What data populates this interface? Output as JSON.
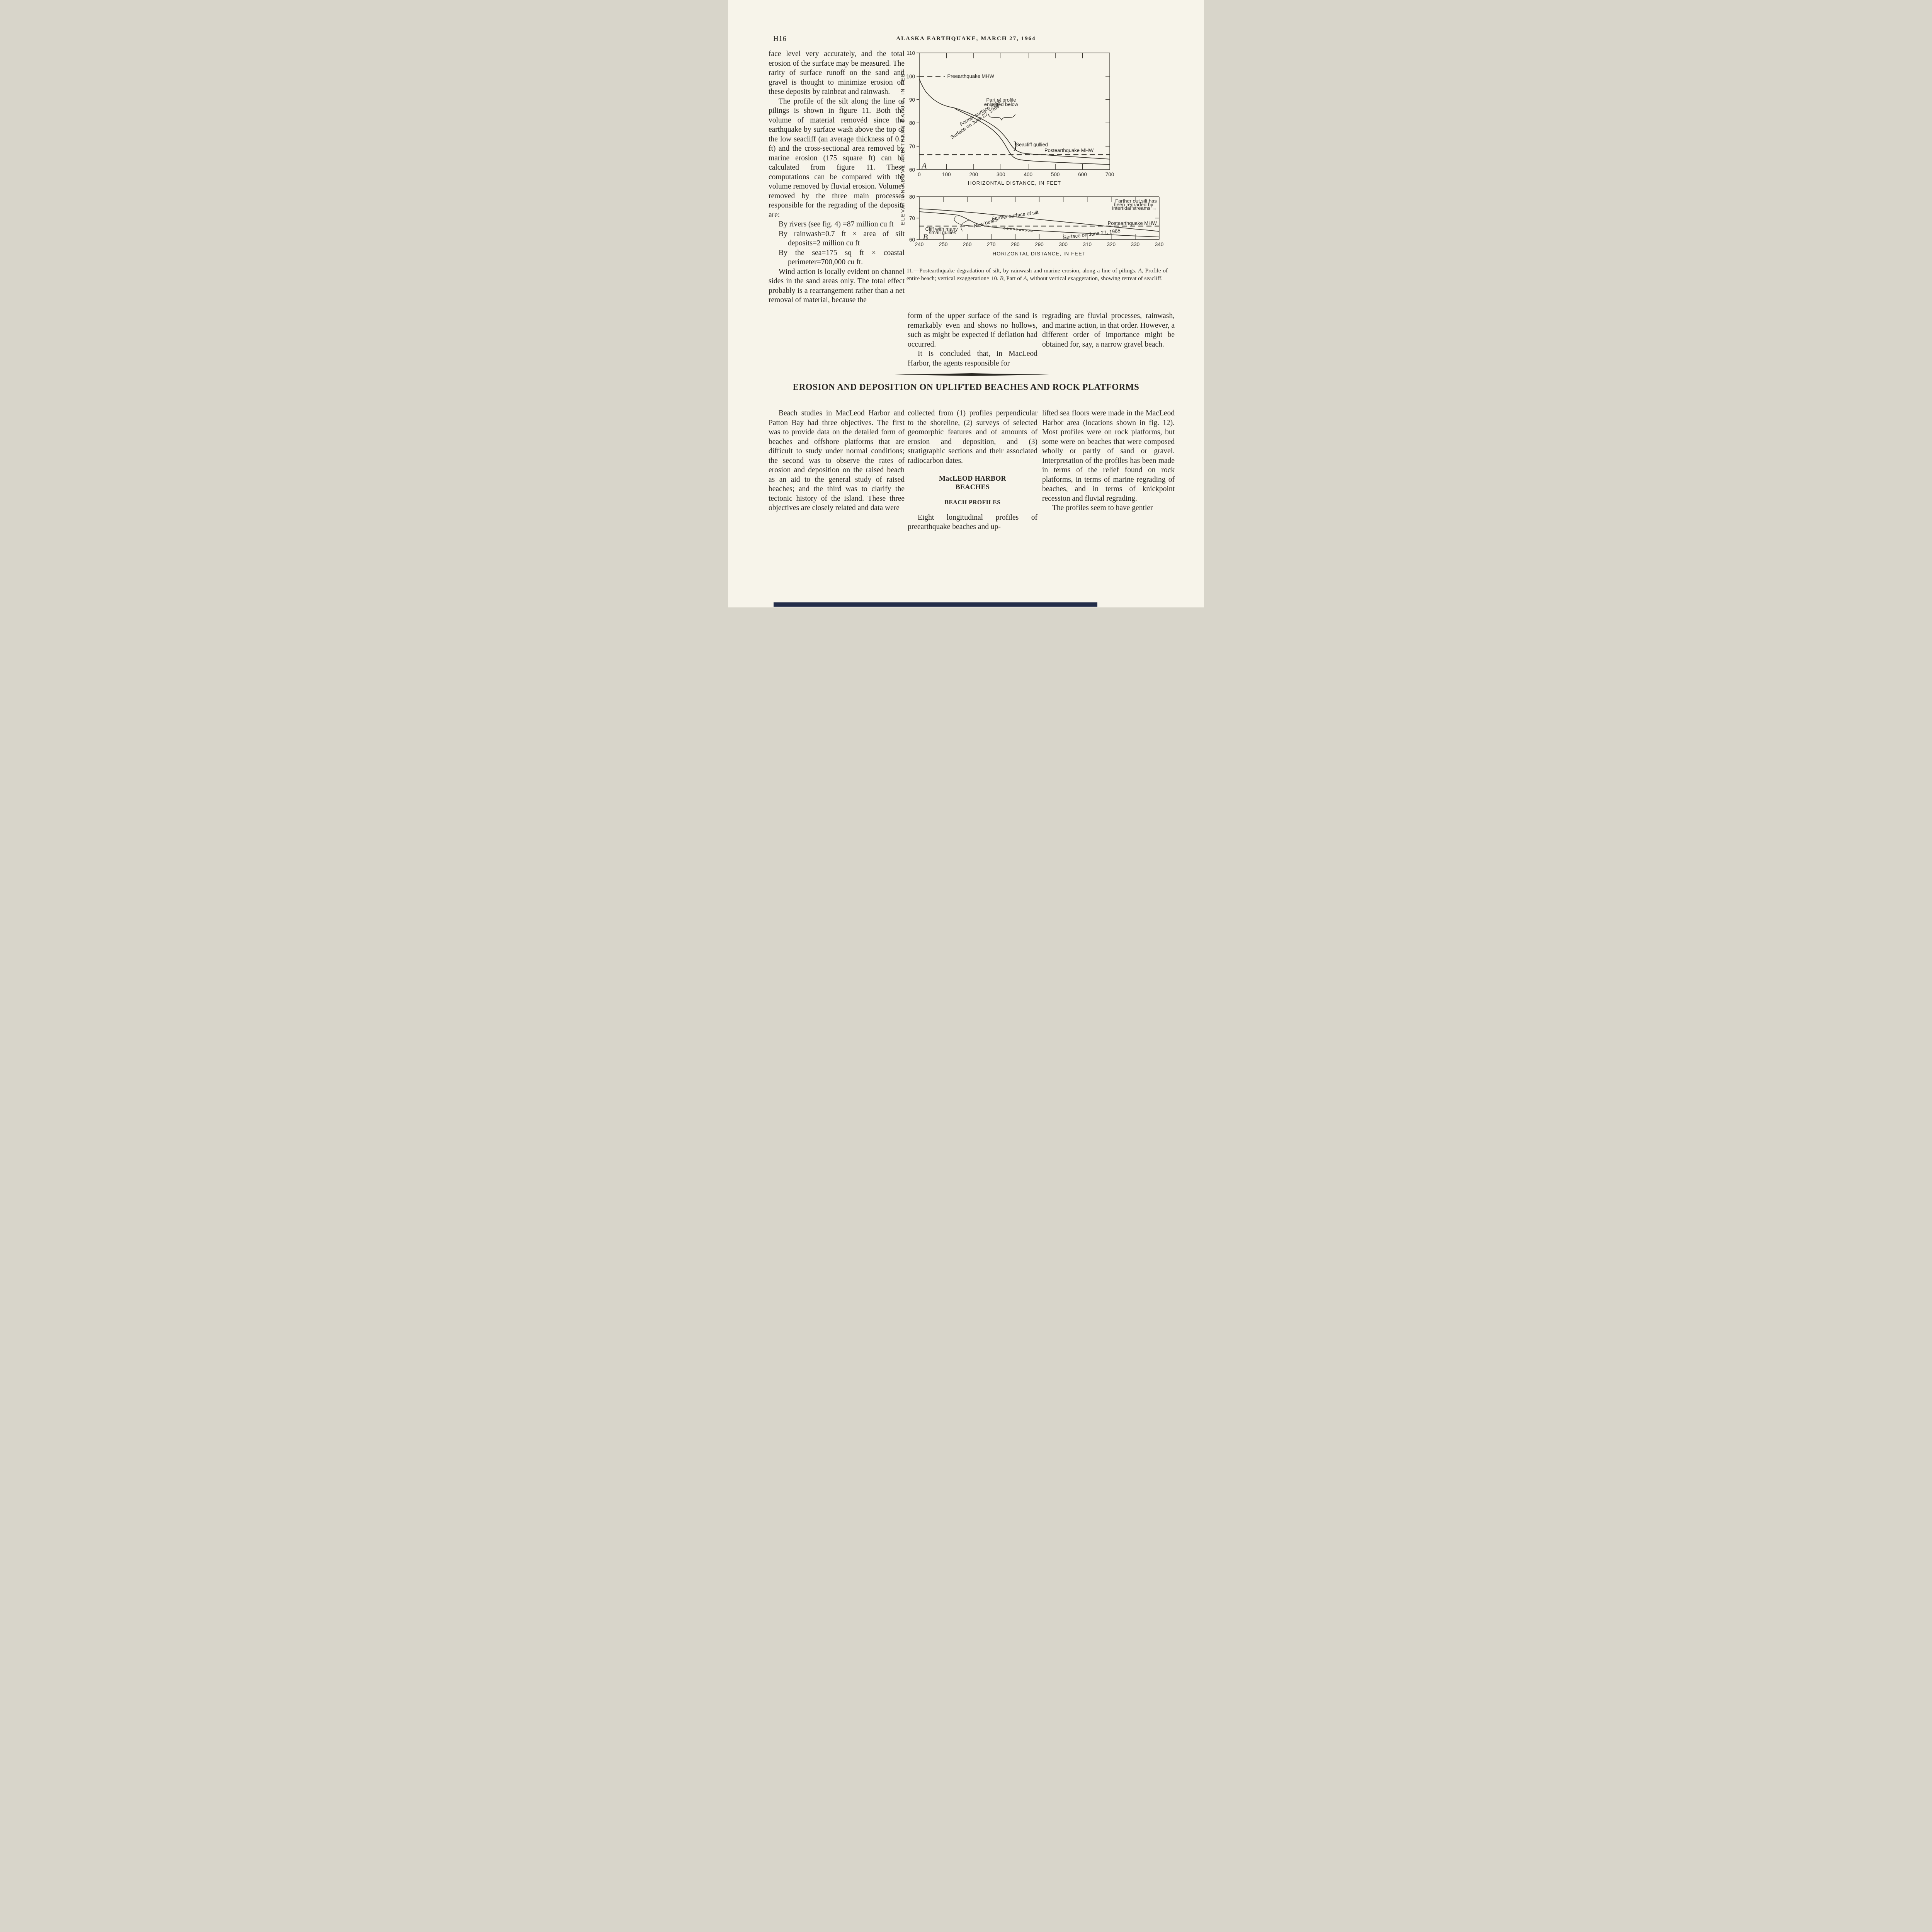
{
  "page": {
    "number": "H16",
    "running_title": "ALASKA EARTHQUAKE, MARCH 27, 1964"
  },
  "colors": {
    "paper": "#f7f4ea",
    "ink": "#262420",
    "scan_bar": "#232d49"
  },
  "col_top_left": {
    "p1": "face level very accurately, and the total erosion of the surface may be measured. The rarity of surface runoff on the sand and gravel is thought to minimize erosion on these deposits by rainbeat and rainwash.",
    "p2": "The profile of the silt along the line of pilings is shown in figure 11. Both the volume of material removéd since the earthquake by surface wash above the top of the low seacliff (an average thickness of 0.7 ft) and the cross-sectional area removed by marine erosion (175 square ft) can be calculated from figure 11. These computations can be compared with the volume removed by fluvial erosion. Volumes removed by the three main processes responsible for the regrading of the deposits are:",
    "items": [
      "By rivers (see fig. 4) =87 million cu ft",
      "By rainwash=0.7 ft × area of silt deposits=2 million cu ft",
      "By the sea=175 sq ft × coastal perimeter=700,000 cu ft."
    ],
    "p3": "Wind action is locally evident on channel sides in the sand areas only. The total effect probably is a rearrangement rather than a net removal of material, because the"
  },
  "figure_caption": {
    "p1": "11.—Postearthquake degradation of silt, by rainwash and marine erosion, along a line of pilings. ",
    "a1": "A",
    "p2": ", Profile of entire beach; vertical exaggeration× 10. ",
    "b1": "B",
    "p3a": ", Part of ",
    "a2": "A",
    "p3b": ", without vertical exaggeration, showing retreat of seacliff."
  },
  "col_mid_top": {
    "p1": "form of the upper surface of the sand is remarkably even and shows no hollows, such as might be expected if deflation had occurred.",
    "p2": "It is concluded that, in MacLeod Harbor, the agents responsible for"
  },
  "col_right_top": {
    "p1": "regrading are fluvial processes, rainwash, and marine action, in that order. However, a different order of importance might be obtained for, say, a narrow gravel beach."
  },
  "section": {
    "heading": "EROSION AND DEPOSITION ON UPLIFTED BEACHES AND ROCK PLATFORMS"
  },
  "col_bot_left": {
    "p1": "Beach studies in MacLeod Harbor and Patton Bay had three objectives. The first was to provide data on the detailed form of beaches and offshore platforms that are difficult to study under normal conditions; the second was to observe the rates of erosion and deposition on the raised beach as an aid to the general study of raised beaches; and the third was to clarify the tectonic history of the island. These three objectives are closely related and data were"
  },
  "col_bot_mid": {
    "p1": "collected from (1) profiles perpendicular to the shoreline, (2) surveys of selected geomorphic features and of amounts of erosion and deposition, and (3) stratigraphic sections and their associated radiocarbon dates.",
    "heading1a": "MacLEOD HARBOR",
    "heading1b": "BEACHES",
    "heading2": "BEACH PROFILES",
    "p2": "Eight longitudinal profiles of preearthquake beaches and up-"
  },
  "col_bot_right": {
    "p1": "lifted sea floors were made in the MacLeod Harbor area (locations shown in fig. 12). Most profiles were on rock platforms, but some were on beaches that were composed wholly or partly of sand or gravel. Interpretation of the profiles has been made in terms of the relief found on rock platforms, in terms of marine regrading of beaches, and in terms of knickpoint recession and fluvial regrading.",
    "p2": "The profiles seem to have gentler"
  },
  "chart_data": [
    {
      "id": "chartA",
      "type": "line",
      "figure_letter": "A",
      "xlabel": "HORIZONTAL DISTANCE, IN FEET",
      "ylabel": "ELEVATION ABOVE ARBITRARY DATUM, IN FEET",
      "xlim": [
        0,
        700
      ],
      "ylim": [
        60,
        110
      ],
      "xticks": [
        0,
        100,
        200,
        300,
        400,
        500,
        600,
        700
      ],
      "yticks": [
        60,
        70,
        80,
        90,
        100,
        110
      ],
      "grid": false,
      "series": [
        {
          "name": "Former surface of silt",
          "points": [
            [
              0,
              99
            ],
            [
              6,
              97.2
            ],
            [
              14,
              95.3
            ],
            [
              24,
              93.4
            ],
            [
              36,
              91.8
            ],
            [
              50,
              90.3
            ],
            [
              66,
              89.0
            ],
            [
              82,
              88.0
            ],
            [
              98,
              87.3
            ],
            [
              114,
              86.8
            ],
            [
              130,
              86.4
            ],
            [
              144,
              85.9
            ],
            [
              160,
              85.2
            ],
            [
              178,
              84.4
            ],
            [
              198,
              83.4
            ],
            [
              218,
              82.4
            ],
            [
              238,
              81.2
            ],
            [
              256,
              80.0
            ],
            [
              272,
              78.8
            ],
            [
              287,
              77.5
            ],
            [
              300,
              76.1
            ],
            [
              312,
              74.6
            ],
            [
              323,
              73.0
            ],
            [
              333,
              71.3
            ],
            [
              342,
              69.8
            ],
            [
              352,
              68.6
            ],
            [
              363,
              67.8
            ],
            [
              376,
              67.2
            ],
            [
              392,
              66.9
            ],
            [
              410,
              66.7
            ],
            [
              435,
              66.5
            ],
            [
              465,
              66.3
            ],
            [
              500,
              66.0
            ],
            [
              540,
              65.7
            ],
            [
              580,
              65.4
            ],
            [
              620,
              65.1
            ],
            [
              660,
              64.8
            ],
            [
              700,
              64.5
            ]
          ]
        },
        {
          "name": "Surface on June 27, 1965",
          "points": [
            [
              130,
              86.2
            ],
            [
              142,
              85.5
            ],
            [
              156,
              84.7
            ],
            [
              172,
              83.8
            ],
            [
              190,
              82.8
            ],
            [
              208,
              81.7
            ],
            [
              226,
              80.5
            ],
            [
              243,
              79.3
            ],
            [
              258,
              78.1
            ],
            [
              271,
              76.9
            ],
            [
              283,
              75.6
            ],
            [
              294,
              74.2
            ],
            [
              304,
              72.7
            ],
            [
              313,
              71.1
            ],
            [
              321,
              69.5
            ],
            [
              329,
              67.9
            ],
            [
              337,
              66.5
            ],
            [
              346,
              65.4
            ],
            [
              356,
              64.7
            ],
            [
              368,
              64.3
            ],
            [
              384,
              64.0
            ],
            [
              405,
              63.8
            ],
            [
              430,
              63.6
            ],
            [
              460,
              63.4
            ],
            [
              495,
              63.2
            ],
            [
              535,
              63.0
            ],
            [
              575,
              62.8
            ],
            [
              615,
              62.6
            ],
            [
              655,
              62.4
            ],
            [
              700,
              62.2
            ]
          ]
        }
      ],
      "dashed": [
        {
          "name": "Preearthquake MHW",
          "y": 100,
          "x1": 0,
          "x2": 95
        },
        {
          "name": "Postearthquake MHW",
          "y": 66.4,
          "x1": 0,
          "x2": 700
        }
      ],
      "annotations": [
        {
          "t": "Preearthquake MHW",
          "x": 103,
          "y": 100,
          "a": "start"
        },
        {
          "t": "Part of profile",
          "x": 301,
          "y": 89.8,
          "a": "middle"
        },
        {
          "t": "enlarged below",
          "x": 301,
          "y": 87.9,
          "a": "middle"
        },
        {
          "t": "Former surface of silt",
          "x": 228,
          "y": 84.5,
          "a": "middle",
          "r": -31
        },
        {
          "t": "Surface on June 27, 1965",
          "x": 208,
          "y": 80.6,
          "a": "middle",
          "r": -34
        },
        {
          "t": "Seacliff gullied",
          "x": 354,
          "y": 70.7,
          "a": "start"
        },
        {
          "t": "Postearthquake MHW",
          "x": 460,
          "y": 68.2,
          "a": "start"
        },
        {
          "t": "A",
          "x": 9,
          "y": 61.7,
          "a": "start",
          "cls": "itl"
        }
      ]
    },
    {
      "id": "chartB",
      "type": "line",
      "figure_letter": "B",
      "xlabel": "HORIZONTAL DISTANCE, IN FEET",
      "xlim": [
        240,
        340
      ],
      "ylim": [
        60,
        80
      ],
      "xticks": [
        240,
        250,
        260,
        270,
        280,
        290,
        300,
        310,
        320,
        330,
        340
      ],
      "yticks": [
        60,
        70,
        80
      ],
      "grid": false,
      "series": [
        {
          "name": "Former surface of silt",
          "points": [
            [
              240,
              74.4
            ],
            [
              250,
              73.7
            ],
            [
              258,
              73.0
            ],
            [
              266,
              72.2
            ],
            [
              274,
              71.3
            ],
            [
              282,
              70.4
            ],
            [
              290,
              69.4
            ],
            [
              298,
              68.5
            ],
            [
              306,
              67.6
            ],
            [
              314,
              66.7
            ],
            [
              322,
              65.8
            ],
            [
              330,
              64.9
            ],
            [
              336,
              64.3
            ],
            [
              340,
              63.8
            ]
          ]
        },
        {
          "name": "Surface on June 27, 1965 (cliff and new beach)",
          "points": [
            [
              240,
              73.0
            ],
            [
              247,
              72.4
            ],
            [
              253,
              71.8
            ],
            [
              256,
              71.4
            ],
            [
              257.5,
              70.9
            ],
            [
              259,
              70.1
            ],
            [
              261,
              69.0
            ],
            [
              263,
              67.9
            ],
            [
              265,
              67.0
            ],
            [
              267,
              66.4
            ],
            [
              270,
              65.9
            ],
            [
              274,
              65.4
            ],
            [
              279,
              65.0
            ],
            [
              285,
              64.5
            ],
            [
              292,
              64.0
            ],
            [
              300,
              63.5
            ],
            [
              308,
              63.0
            ],
            [
              316,
              62.5
            ],
            [
              324,
              62.0
            ],
            [
              332,
              61.6
            ],
            [
              340,
              61.2
            ]
          ]
        }
      ],
      "dashed": [
        {
          "name": "Postearthquake MHW",
          "y": 66.3,
          "x1": 240,
          "x2": 340
        }
      ],
      "circles": [
        [
          275.5,
          65.25
        ],
        [
          276.8,
          65.1
        ],
        [
          278.1,
          64.97
        ],
        [
          279.4,
          64.84
        ],
        [
          280.7,
          64.71
        ],
        [
          282,
          64.58
        ],
        [
          283.2,
          64.44
        ],
        [
          284.4,
          64.3
        ],
        [
          285.6,
          64.16
        ],
        [
          286.8,
          64.02
        ]
      ],
      "annotations": [
        {
          "t": "Farther out,silt has",
          "x": 339,
          "y": 77.9,
          "a": "end"
        },
        {
          "t": "been regraded by",
          "x": 337.5,
          "y": 76.25,
          "a": "end"
        },
        {
          "t": "intertidal streams →",
          "x": 339,
          "y": 74.6,
          "a": "end"
        },
        {
          "t": "Former surface of silt",
          "x": 280,
          "y": 71.2,
          "a": "middle",
          "r": -8
        },
        {
          "t": "New beach",
          "x": 268,
          "y": 67.8,
          "a": "middle",
          "r": -16
        },
        {
          "t": "Postearthquake MHW",
          "x": 339,
          "y": 67.6,
          "a": "end"
        },
        {
          "t": "Cliff with many",
          "x": 242.5,
          "y": 64.9,
          "a": "start"
        },
        {
          "t": "small gullies",
          "x": 244,
          "y": 63.2,
          "a": "start"
        },
        {
          "t": "Surface on June 27, 1965",
          "x": 312,
          "y": 62.5,
          "a": "middle",
          "r": -7
        },
        {
          "t": "B",
          "x": 241.5,
          "y": 61.2,
          "a": "start",
          "cls": "itl"
        }
      ]
    }
  ]
}
